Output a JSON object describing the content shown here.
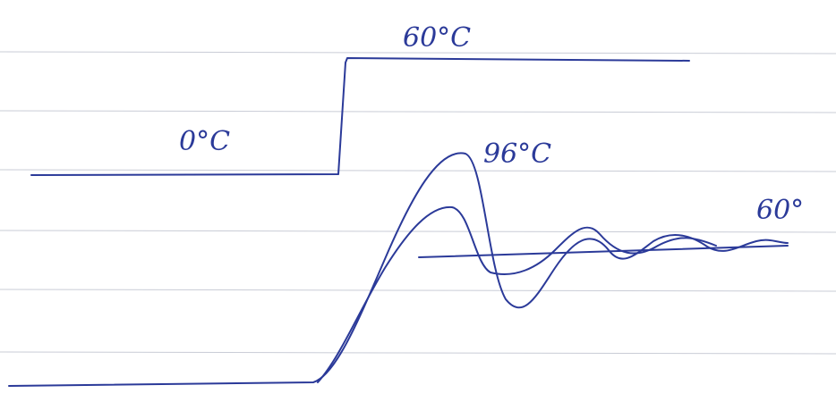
{
  "labels": {
    "step_high": "60°C",
    "step_low": "0°C",
    "peak": "96°C",
    "final": "60°"
  }
}
